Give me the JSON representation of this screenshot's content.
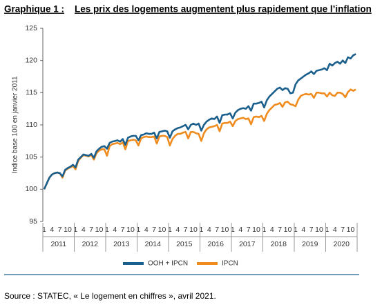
{
  "chart_data": {
    "type": "line",
    "title_prefix": "Graphique 1 :",
    "title": "Les prix des logements augmentent plus rapidement que l’inflation",
    "ylabel": "Indice base 100 en janvier 2011",
    "categories": [
      "1",
      null,
      null,
      "4",
      null,
      null,
      "7",
      null,
      null,
      "10",
      null,
      null,
      "1",
      null,
      null,
      "4",
      null,
      null,
      "7",
      null,
      null,
      "10",
      null,
      null,
      "1",
      null,
      null,
      "4",
      null,
      null,
      "7",
      null,
      null,
      "10",
      null,
      null,
      "1",
      null,
      null,
      "4",
      null,
      null,
      "7",
      null,
      null,
      "10",
      null,
      null,
      "1",
      null,
      null,
      "4",
      null,
      null,
      "7",
      null,
      null,
      "10",
      null,
      null,
      "1",
      null,
      null,
      "4",
      null,
      null,
      "7",
      null,
      null,
      "10",
      null,
      null,
      "1",
      null,
      null,
      "4",
      null,
      null,
      "7",
      null,
      null,
      "10",
      null,
      null,
      "1",
      null,
      null,
      "4",
      null,
      null,
      "7",
      null,
      null,
      "10",
      null,
      null,
      "1",
      null,
      null,
      "4",
      null,
      null,
      "7",
      null,
      null,
      "10",
      null,
      null,
      "1",
      null,
      null,
      "4",
      null,
      null,
      "7",
      null,
      null,
      "10",
      null,
      null
    ],
    "year_groups": [
      "2011",
      "2012",
      "2013",
      "2014",
      "2015",
      "2016",
      "2017",
      "2018",
      "2019",
      "2020"
    ],
    "series": [
      {
        "name": "OOH + IPCN",
        "color": "#1b5f8c",
        "values": [
          100.0,
          100.9,
          101.8,
          102.3,
          102.5,
          102.6,
          102.5,
          102.0,
          103.0,
          103.3,
          103.5,
          103.8,
          103.4,
          104.6,
          105.0,
          105.4,
          105.3,
          105.2,
          105.5,
          104.9,
          105.9,
          106.3,
          106.6,
          106.7,
          106.3,
          107.2,
          107.4,
          107.5,
          107.6,
          107.4,
          107.8,
          106.9,
          108.0,
          108.2,
          108.3,
          108.3,
          107.6,
          108.4,
          108.5,
          108.7,
          108.6,
          108.6,
          108.8,
          107.9,
          108.9,
          109.0,
          109.1,
          109.0,
          108.0,
          109.0,
          109.3,
          109.5,
          109.6,
          109.8,
          110.0,
          109.3,
          110.0,
          110.2,
          110.0,
          110.2,
          109.1,
          110.0,
          110.5,
          110.8,
          111.0,
          110.9,
          111.3,
          110.3,
          111.5,
          111.6,
          111.6,
          111.8,
          111.0,
          111.9,
          112.3,
          112.5,
          112.6,
          112.5,
          112.9,
          112.2,
          113.3,
          113.3,
          113.4,
          113.6,
          112.7,
          113.8,
          114.4,
          114.8,
          115.2,
          115.6,
          115.8,
          115.4,
          115.7,
          115.6,
          114.9,
          115.0,
          116.3,
          116.9,
          117.2,
          117.5,
          117.8,
          118.0,
          118.3,
          117.9,
          118.4,
          118.5,
          118.6,
          118.8,
          118.5,
          119.5,
          119.2,
          119.6,
          119.8,
          119.5,
          120.0,
          119.6,
          120.5,
          120.3,
          120.8,
          121.0
        ]
      },
      {
        "name": "IPCN",
        "color": "#f08c1e",
        "values": [
          100.0,
          100.9,
          101.8,
          102.3,
          102.5,
          102.6,
          102.5,
          101.8,
          102.9,
          103.2,
          103.4,
          103.6,
          103.1,
          104.4,
          104.9,
          105.3,
          105.2,
          105.1,
          105.3,
          104.6,
          105.6,
          106.0,
          106.2,
          106.2,
          105.2,
          106.7,
          107.0,
          107.1,
          107.2,
          107.0,
          107.3,
          106.2,
          107.5,
          107.6,
          107.7,
          107.6,
          106.8,
          107.9,
          108.1,
          108.2,
          108.1,
          108.1,
          108.2,
          107.1,
          108.2,
          108.3,
          108.3,
          108.1,
          106.8,
          107.8,
          108.3,
          108.6,
          108.6,
          108.8,
          108.9,
          107.9,
          108.9,
          108.9,
          108.7,
          108.6,
          107.5,
          108.7,
          109.3,
          109.6,
          109.7,
          109.8,
          110.0,
          109.0,
          110.2,
          110.3,
          110.3,
          110.5,
          109.8,
          110.6,
          110.9,
          111.0,
          111.1,
          110.9,
          111.0,
          110.1,
          111.2,
          111.3,
          111.2,
          111.4,
          110.6,
          111.7,
          112.3,
          112.7,
          113.1,
          113.2,
          113.4,
          112.8,
          113.5,
          113.6,
          113.2,
          113.1,
          112.9,
          113.9,
          114.5,
          114.7,
          114.8,
          114.7,
          114.8,
          114.2,
          115.0,
          115.0,
          114.9,
          114.9,
          114.4,
          115.0,
          114.6,
          114.5,
          115.0,
          115.0,
          114.8,
          114.3,
          115.1,
          115.5,
          115.3,
          115.5
        ]
      }
    ],
    "ylim": [
      95,
      125
    ],
    "yticks": [
      95,
      100,
      105,
      110,
      115,
      120,
      125
    ],
    "grid": false,
    "legend": "bottom",
    "source": "Source : STATEC, « Le logement en chiffres », avril 2021."
  }
}
